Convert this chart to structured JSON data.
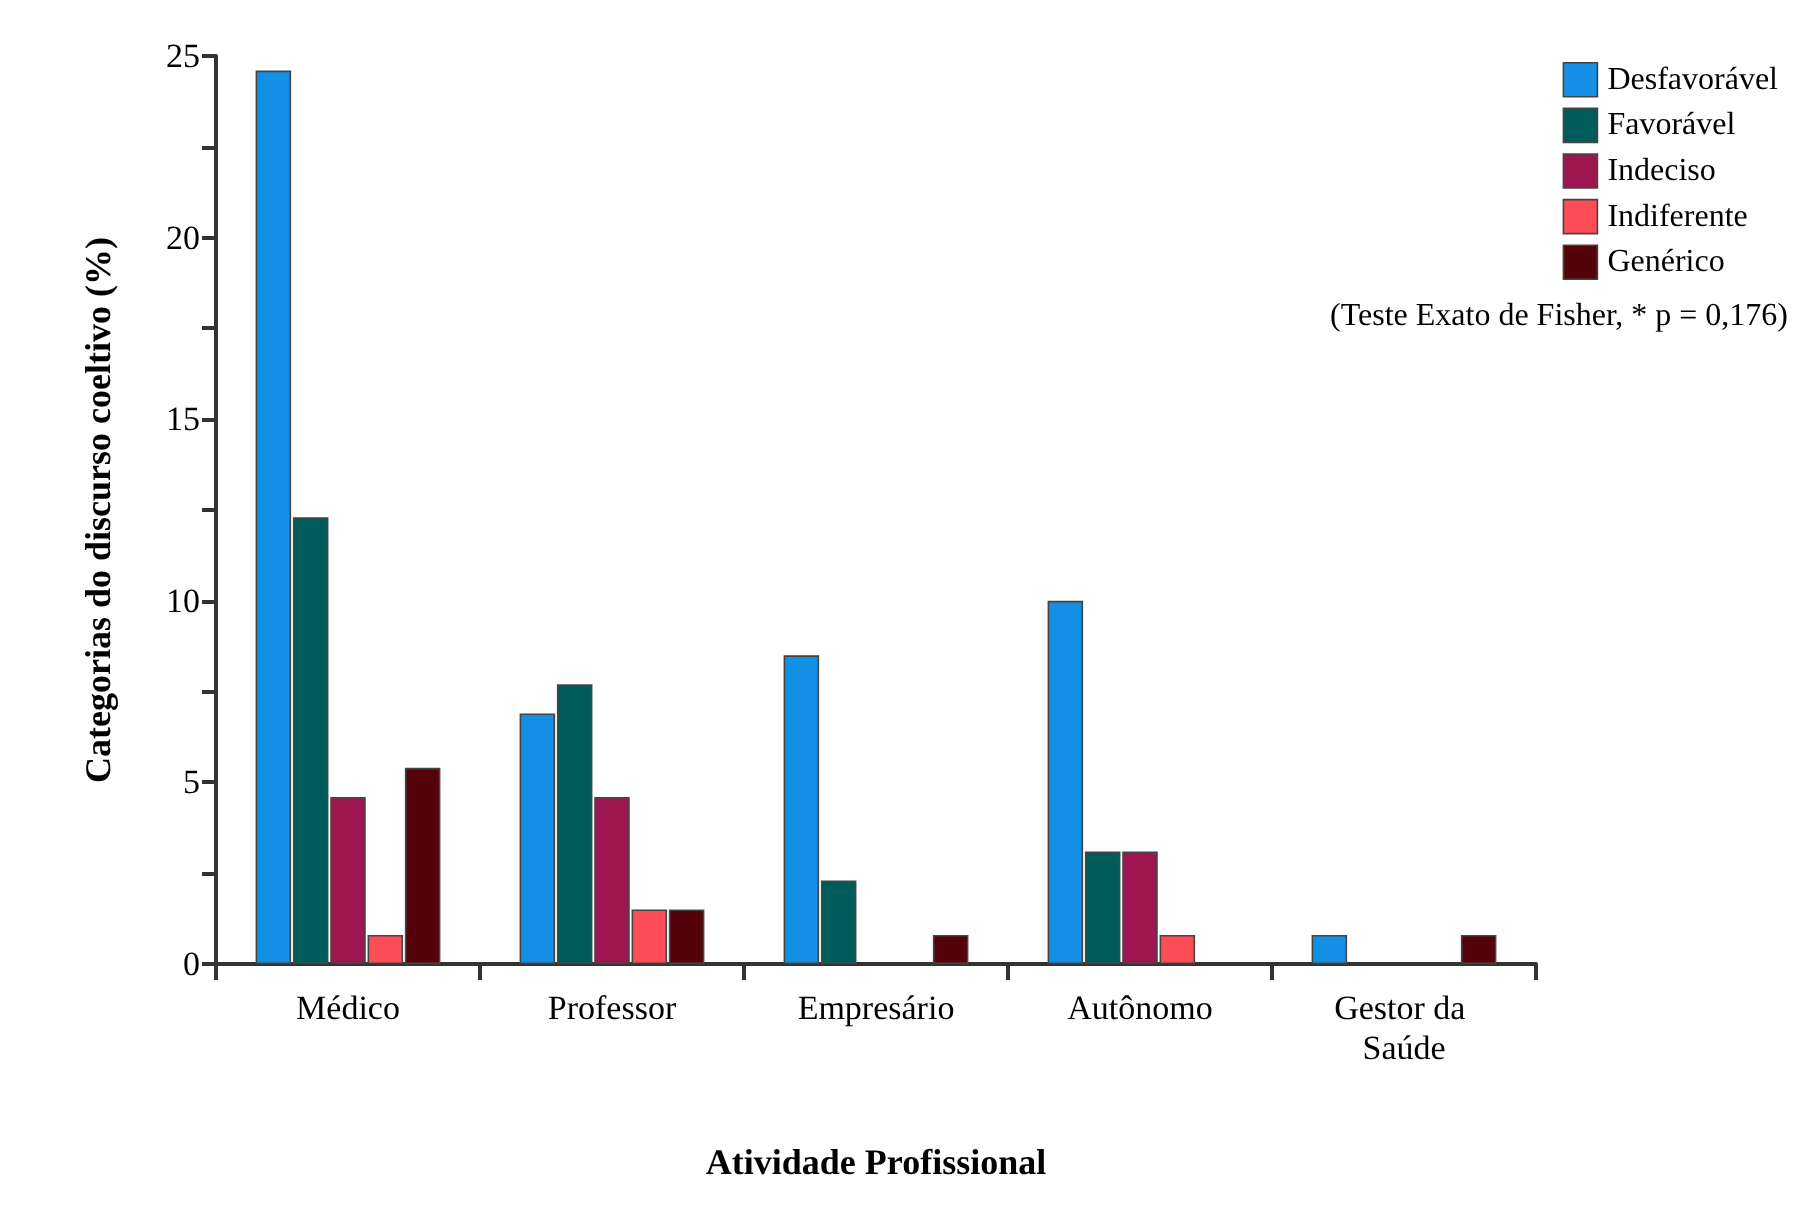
{
  "chart_data": {
    "type": "bar",
    "xlabel": "Atividade Profissional",
    "ylabel": "Categorias do discurso coeltivo (%)",
    "categories": [
      "Médico",
      "Professor",
      "Empresário",
      "Autônomo",
      "Gestor da Saúde"
    ],
    "series": [
      {
        "name": "Desfavorável",
        "color": "#1390e6",
        "values": [
          24.6,
          6.9,
          8.5,
          10.0,
          0.8
        ]
      },
      {
        "name": "Favorável",
        "color": "#005c5a",
        "values": [
          12.3,
          7.7,
          2.3,
          3.1,
          0
        ]
      },
      {
        "name": "Indeciso",
        "color": "#9e1650",
        "values": [
          4.6,
          4.6,
          0,
          3.1,
          0
        ]
      },
      {
        "name": "Indiferente",
        "color": "#fc4d57",
        "values": [
          0.8,
          1.5,
          0,
          0.8,
          0
        ]
      },
      {
        "name": "Genérico",
        "color": "#55030a",
        "values": [
          5.4,
          1.5,
          0.8,
          0,
          0.8
        ]
      }
    ],
    "ylim": [
      0,
      25
    ],
    "yticks": [
      0,
      {
        "value": 2.5,
        "label": null
      },
      5,
      {
        "value": 7.5,
        "label": null
      },
      10,
      {
        "value": 12.5,
        "label": null
      },
      15,
      {
        "value": 17.5,
        "label": null
      },
      20,
      {
        "value": 22.5,
        "label": null
      },
      25
    ],
    "legend": "top right",
    "grid": false,
    "annotations": [
      "(Teste Exato de Fisher, * p = 0,176)"
    ]
  }
}
